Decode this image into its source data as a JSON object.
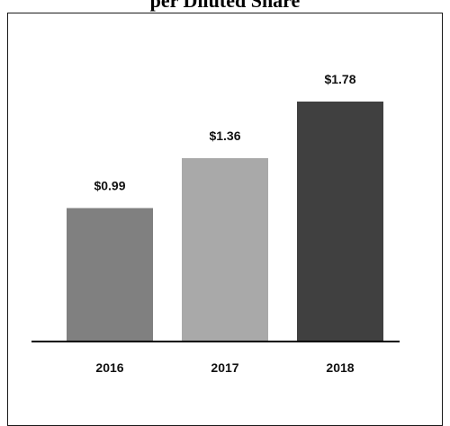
{
  "chart_data": {
    "type": "bar",
    "title": "per Diluted Share",
    "categories": [
      "2016",
      "2017",
      "2018"
    ],
    "values": [
      0.99,
      1.36,
      1.78
    ],
    "value_labels": [
      "$0.99",
      "$1.36",
      "$1.78"
    ],
    "bar_colors": [
      "#808080",
      "#a9a9a9",
      "#404040"
    ],
    "ylim": [
      0,
      2.0
    ],
    "grid": false,
    "xlabel": "",
    "ylabel": ""
  }
}
